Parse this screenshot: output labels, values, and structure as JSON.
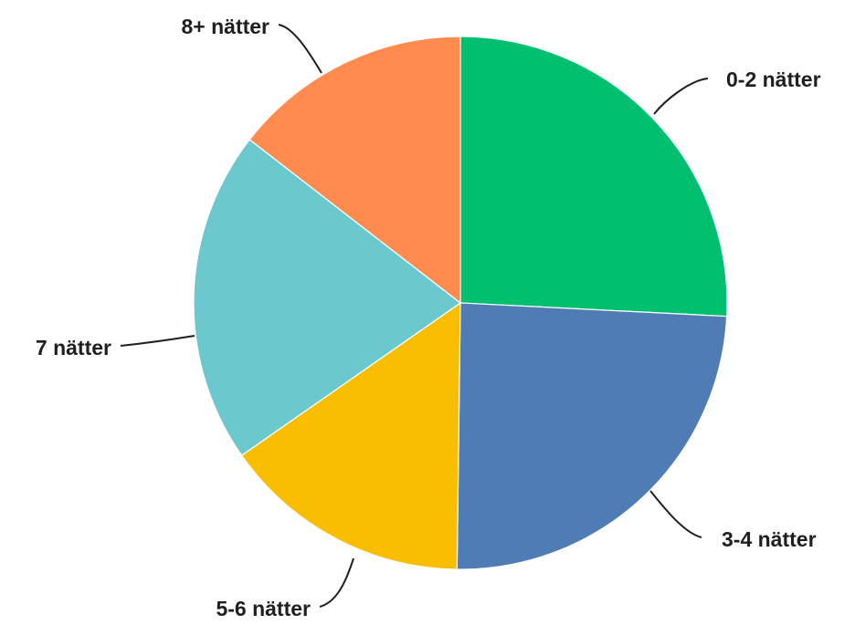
{
  "chart_data": {
    "type": "pie",
    "start_angle_deg": 0,
    "direction": "clockwise",
    "slices": [
      {
        "label": "0-2 nätter",
        "value": 25.8,
        "color": "#00BF6F"
      },
      {
        "label": "3-4 nätter",
        "value": 24.4,
        "color": "#507CB6"
      },
      {
        "label": "5-6 nätter",
        "value": 15.1,
        "color": "#F9BE00"
      },
      {
        "label": "7 nätter",
        "value": 20.2,
        "color": "#6BC8CD"
      },
      {
        "label": "8+ nätter",
        "value": 14.5,
        "color": "#FF8B4F"
      }
    ],
    "data_labels": false,
    "legend": "none"
  }
}
